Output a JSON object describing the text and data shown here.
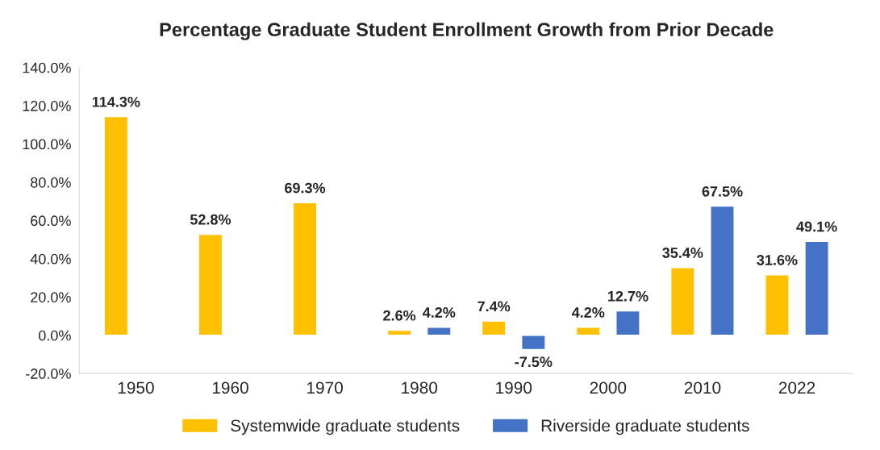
{
  "chart_data": {
    "type": "bar",
    "title": "Percentage Graduate Student Enrollment Growth from Prior Decade",
    "categories": [
      "1950",
      "1960",
      "1970",
      "1980",
      "1990",
      "2000",
      "2010",
      "2022"
    ],
    "series": [
      {
        "name": "Systemwide graduate students",
        "color": "#ffc000",
        "values": [
          114.3,
          52.8,
          69.3,
          2.6,
          7.4,
          4.2,
          35.4,
          31.6
        ],
        "value_labels": [
          "114.3%",
          "52.8%",
          "69.3%",
          "2.6%",
          "7.4%",
          "4.2%",
          "35.4%",
          "31.6%"
        ]
      },
      {
        "name": "Riverside graduate students",
        "color": "#4472c4",
        "values": [
          null,
          null,
          null,
          4.2,
          -7.5,
          12.7,
          67.5,
          49.1
        ],
        "value_labels": [
          null,
          null,
          null,
          "4.2%",
          "-7.5%",
          "12.7%",
          "67.5%",
          "49.1%"
        ]
      }
    ],
    "ylim": [
      -20,
      140
    ],
    "yticks": [
      {
        "value": -20,
        "label": "-20.0%"
      },
      {
        "value": 0,
        "label": "0.0%"
      },
      {
        "value": 20,
        "label": "20.0%"
      },
      {
        "value": 40,
        "label": "40.0%"
      },
      {
        "value": 60,
        "label": "60.0%"
      },
      {
        "value": 80,
        "label": "80.0%"
      },
      {
        "value": 100,
        "label": "100.0%"
      },
      {
        "value": 120,
        "label": "120.0%"
      },
      {
        "value": 140,
        "label": "140.0%"
      }
    ],
    "grid": false,
    "legend": "bottom"
  }
}
